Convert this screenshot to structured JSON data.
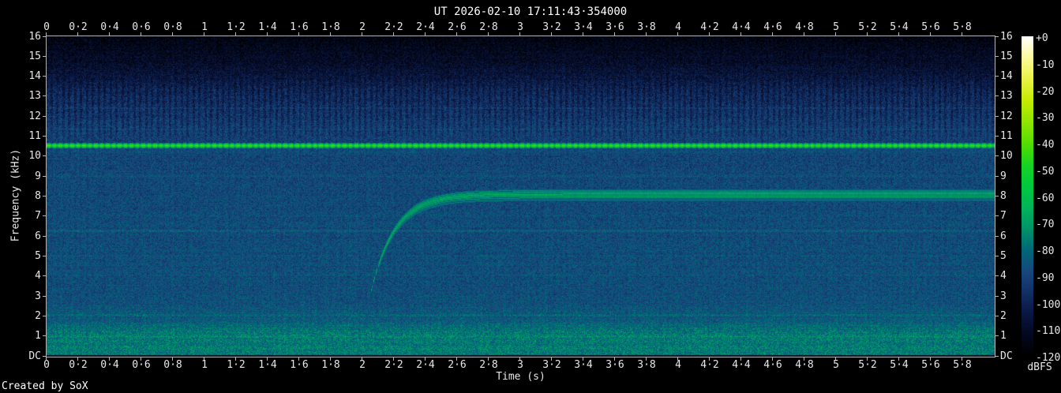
{
  "header": {
    "title": "UT 2026-02-10 17:11:43·354000"
  },
  "footer": {
    "credit": "Created by SoX"
  },
  "axes": {
    "x_label": "Time (s)",
    "y_label": "Frequency (kHz)",
    "x_tick_labels": [
      "0",
      "0·2",
      "0·4",
      "0·6",
      "0·8",
      "1",
      "1·2",
      "1·4",
      "1·6",
      "1·8",
      "2",
      "2·2",
      "2·4",
      "2·6",
      "2·8",
      "3",
      "3·2",
      "3·4",
      "3·6",
      "3·8",
      "4",
      "4·2",
      "4·4",
      "4·6",
      "4·8",
      "5",
      "5·2",
      "5·4",
      "5·6",
      "5·8"
    ],
    "y_tick_labels": [
      "16",
      "15",
      "14",
      "13",
      "12",
      "11",
      "10",
      "9",
      "8",
      "7",
      "6",
      "5",
      "4",
      "3",
      "2",
      "1",
      "DC"
    ]
  },
  "colorbar": {
    "label": "dBFS",
    "tick_labels": [
      "+0",
      "-10",
      "-20",
      "-30",
      "-40",
      "-50",
      "-60",
      "-70",
      "-80",
      "-90",
      "-100",
      "-110",
      "-120"
    ],
    "palette_stops_dbfs_hex": [
      [
        -120,
        "#000000"
      ],
      [
        -112,
        "#04081f"
      ],
      [
        -104,
        "#0a1742"
      ],
      [
        -96,
        "#123066"
      ],
      [
        -88,
        "#18497e"
      ],
      [
        -80,
        "#006878"
      ],
      [
        -72,
        "#00946a"
      ],
      [
        -64,
        "#00b558"
      ],
      [
        -56,
        "#00c940"
      ],
      [
        -48,
        "#18d422"
      ],
      [
        -40,
        "#55de00"
      ],
      [
        -32,
        "#90e600"
      ],
      [
        -24,
        "#c4ec00"
      ],
      [
        -16,
        "#e9f344"
      ],
      [
        -8,
        "#fdfa9a"
      ],
      [
        0,
        "#ffffff"
      ]
    ]
  },
  "chart_data": {
    "type": "heatmap",
    "title": "UT 2026-02-10 17:11:43·354000",
    "xlabel": "Time (s)",
    "ylabel": "Frequency (kHz)",
    "zlabel": "dBFS",
    "xlim_s": [
      0,
      6
    ],
    "ylim_khz": [
      0,
      16
    ],
    "zlim_dbfs": [
      -120,
      0
    ],
    "grid": false,
    "signals": [
      {
        "name": "keyed-tone",
        "type": "tone",
        "freq_khz": 10.55,
        "span_s": [
          0,
          6
        ],
        "peak_dbfs": -42,
        "off_drop_db": 12,
        "keying_period_s": 0.0375,
        "duty": 0.56
      },
      {
        "name": "exponential-chirp",
        "type": "chirp",
        "start_s": 2.03,
        "f_start_khz": 2.45,
        "f_asymptote_khz": 8.12,
        "tau_s": 0.15,
        "dotted_below_khz": 4.6,
        "line_offsets_khz": [
          0.18,
          0.09,
          0,
          -0.09,
          -0.19,
          -0.3
        ],
        "line_levels_dbfs": [
          -74,
          -69,
          -65,
          -68,
          -72,
          -76
        ]
      }
    ],
    "noise_floor_dbfs": [
      [
        0,
        -79
      ],
      [
        1.2,
        -80
      ],
      [
        1.8,
        -86
      ],
      [
        3,
        -89
      ],
      [
        6,
        -90
      ],
      [
        9,
        -91
      ],
      [
        10.3,
        -92
      ],
      [
        11,
        -95
      ],
      [
        12,
        -99
      ],
      [
        12.8,
        -102
      ],
      [
        13.6,
        -106
      ],
      [
        14.4,
        -110
      ],
      [
        15.2,
        -114
      ],
      [
        16,
        -118
      ]
    ],
    "bright_rows_khz": [
      [
        10.18,
        10.44,
        2.2
      ],
      [
        8.97,
        9.07,
        3.2
      ],
      [
        7.03,
        7.1,
        2.2
      ],
      [
        6.24,
        6.34,
        4.0
      ],
      [
        5.0,
        5.08,
        2.0
      ],
      [
        4.02,
        4.1,
        2.2
      ],
      [
        3.0,
        3.07,
        1.6
      ],
      [
        2.0,
        2.1,
        3.2
      ],
      [
        1.52,
        1.58,
        2.0
      ],
      [
        0.94,
        1.04,
        3.4
      ],
      [
        12.37,
        12.45,
        2.4
      ],
      [
        11.3,
        11.38,
        1.6
      ]
    ],
    "stripe_band_khz": [
      10.75,
      14.2
    ]
  }
}
